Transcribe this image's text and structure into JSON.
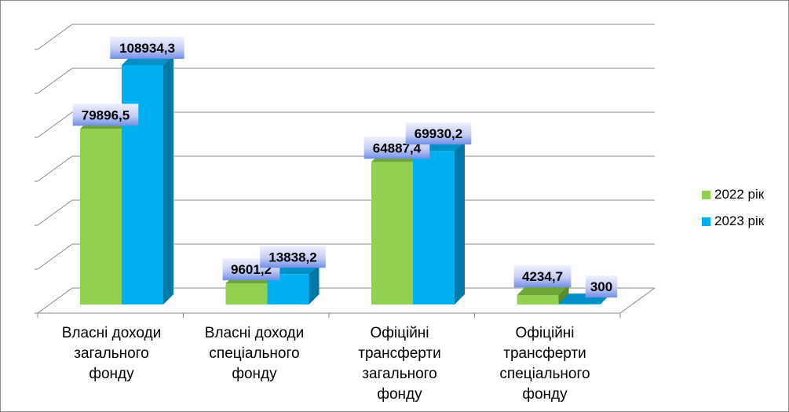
{
  "chart_data": {
    "type": "bar",
    "categories": [
      "Власні доходи\nзагального\nфонду",
      "Власні доходи\nспеціального\nфонду",
      "Офіційні\nтрансферти\nзагального\nфонду",
      "Офіційні\nтрансферти\nспеціального\nфонду"
    ],
    "series": [
      {
        "name": "2022 рік",
        "color": "#92d050",
        "values": [
          79896.5,
          9601.2,
          64887.4,
          4234.7
        ],
        "labels": [
          "79896,5",
          "9601,2",
          "64887,4",
          "4234,7"
        ]
      },
      {
        "name": "2023 рік",
        "color": "#00b0f0",
        "values": [
          108934.3,
          13838.2,
          69930.2,
          300
        ],
        "labels": [
          "108934,3",
          "13838,2",
          "69930,2",
          "300"
        ]
      }
    ],
    "ylim": [
      0,
      120000
    ],
    "grid": true,
    "three_d": true,
    "legend_position": "right",
    "data_label_colors": [
      "#bfc8f2",
      "#5b7fe8"
    ]
  }
}
